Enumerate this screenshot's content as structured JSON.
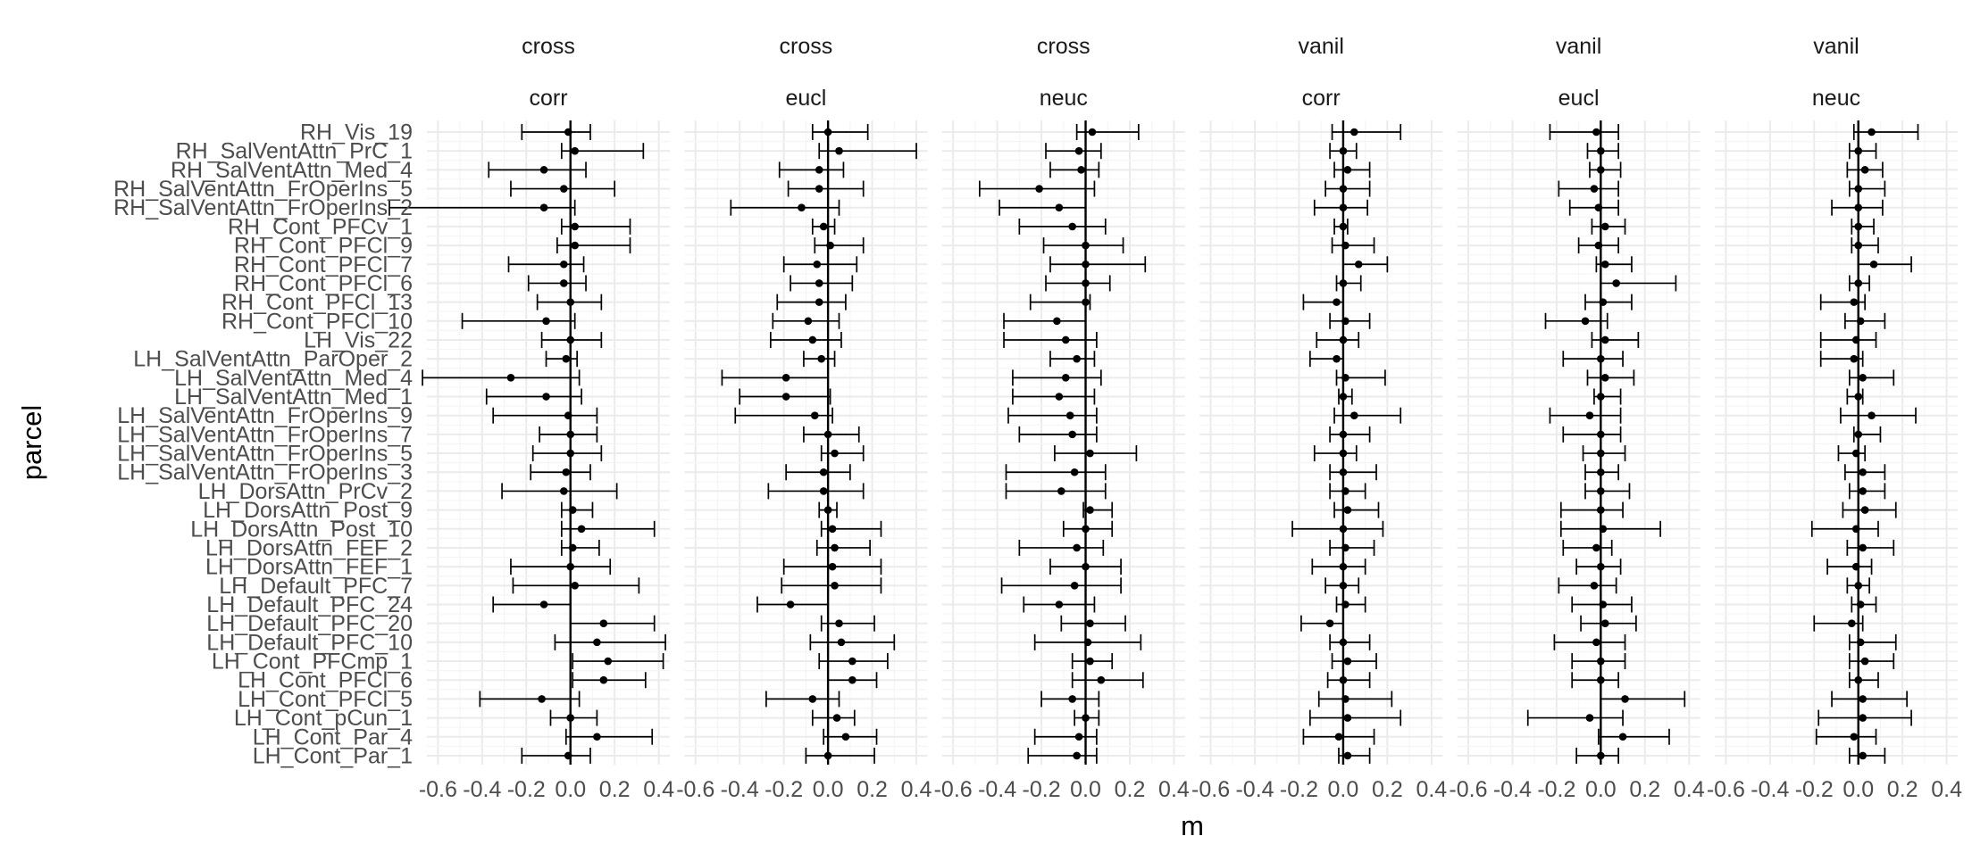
{
  "chart_data": {
    "type": "forest-plot (point + error bar)",
    "xlabel": "m",
    "ylabel": "parcel",
    "xlim": [
      -0.65,
      0.45
    ],
    "xticks": [
      -0.6,
      -0.4,
      -0.2,
      0.0,
      0.2,
      0.4
    ],
    "xtick_labels": [
      "-0.6",
      "-0.4",
      "-0.2",
      "0.0",
      "0.2",
      "0.4"
    ],
    "reference_line_x": 0,
    "grid": true,
    "parcels": [
      "RH_Vis_19",
      "RH_SalVentAttn_PrC_1",
      "RH_SalVentAttn_Med_4",
      "RH_SalVentAttn_FrOperIns_5",
      "RH_SalVentAttn_FrOperIns_2",
      "RH_Cont_PFCv_1",
      "RH_Cont_PFCl_9",
      "RH_Cont_PFCl_7",
      "RH_Cont_PFCl_6",
      "RH_Cont_PFCl_13",
      "RH_Cont_PFCl_10",
      "LH_Vis_22",
      "LH_SalVentAttn_ParOper_2",
      "LH_SalVentAttn_Med_4",
      "LH_SalVentAttn_Med_1",
      "LH_SalVentAttn_FrOperIns_9",
      "LH_SalVentAttn_FrOperIns_7",
      "LH_SalVentAttn_FrOperIns_5",
      "LH_SalVentAttn_FrOperIns_3",
      "LH_DorsAttn_PrCv_2",
      "LH_DorsAttn_Post_9",
      "LH_DorsAttn_Post_10",
      "LH_DorsAttn_FEF_2",
      "LH_DorsAttn_FEF_1",
      "LH_Default_PFC_7",
      "LH_Default_PFC_24",
      "LH_Default_PFC_20",
      "LH_Default_PFC_10",
      "LH_Cont_PFCmp_1",
      "LH_Cont_PFCl_6",
      "LH_Cont_PFCl_5",
      "LH_Cont_pCun_1",
      "LH_Cont_Par_4",
      "LH_Cont_Par_1"
    ],
    "panels": [
      {
        "strip": [
          "cross",
          "corr"
        ],
        "m": [
          -0.01,
          0.02,
          -0.12,
          -0.03,
          -0.12,
          0.02,
          0.02,
          -0.03,
          -0.03,
          0.0,
          -0.11,
          0.0,
          -0.02,
          -0.27,
          -0.11,
          -0.01,
          0.0,
          0.0,
          -0.02,
          -0.03,
          0.01,
          0.05,
          0.01,
          0.0,
          0.02,
          -0.12,
          0.15,
          0.12,
          0.17,
          0.15,
          -0.13,
          0.0,
          0.12,
          -0.01
        ],
        "lo": [
          -0.22,
          -0.04,
          -0.37,
          -0.27,
          -0.82,
          -0.04,
          -0.06,
          -0.28,
          -0.19,
          -0.15,
          -0.49,
          -0.13,
          -0.11,
          -0.67,
          -0.38,
          -0.35,
          -0.14,
          -0.17,
          -0.18,
          -0.31,
          -0.04,
          -0.04,
          -0.04,
          -0.27,
          -0.26,
          -0.35,
          0.0,
          -0.07,
          0.01,
          0.01,
          -0.41,
          -0.09,
          -0.02,
          -0.22
        ],
        "hi": [
          0.09,
          0.33,
          0.07,
          0.2,
          0.02,
          0.27,
          0.27,
          0.06,
          0.07,
          0.14,
          0.02,
          0.14,
          0.03,
          0.04,
          0.05,
          0.12,
          0.12,
          0.14,
          0.09,
          0.21,
          0.1,
          0.38,
          0.13,
          0.18,
          0.31,
          0.0,
          0.38,
          0.43,
          0.42,
          0.34,
          0.04,
          0.12,
          0.37,
          0.09
        ]
      },
      {
        "strip": [
          "cross",
          "eucl"
        ],
        "m": [
          0.0,
          0.05,
          -0.04,
          -0.04,
          -0.12,
          -0.02,
          0.01,
          -0.05,
          -0.04,
          -0.04,
          -0.09,
          -0.07,
          -0.03,
          -0.19,
          -0.19,
          -0.06,
          0.0,
          0.03,
          -0.02,
          -0.02,
          0.0,
          0.02,
          0.03,
          0.02,
          0.03,
          -0.17,
          0.05,
          0.06,
          0.11,
          0.11,
          -0.07,
          0.04,
          0.08,
          0.0
        ],
        "lo": [
          -0.07,
          -0.04,
          -0.22,
          -0.18,
          -0.44,
          -0.07,
          -0.06,
          -0.2,
          -0.17,
          -0.23,
          -0.25,
          -0.26,
          -0.11,
          -0.48,
          -0.4,
          -0.42,
          -0.11,
          -0.03,
          -0.19,
          -0.27,
          -0.04,
          -0.03,
          -0.05,
          -0.2,
          -0.21,
          -0.32,
          -0.03,
          -0.08,
          -0.04,
          0.0,
          -0.28,
          -0.07,
          -0.02,
          -0.1
        ],
        "hi": [
          0.18,
          0.4,
          0.07,
          0.16,
          0.05,
          0.03,
          0.16,
          0.13,
          0.11,
          0.08,
          0.05,
          0.06,
          0.03,
          0.0,
          0.01,
          0.02,
          0.14,
          0.16,
          0.1,
          0.16,
          0.04,
          0.24,
          0.19,
          0.24,
          0.24,
          0.0,
          0.21,
          0.3,
          0.27,
          0.22,
          0.05,
          0.12,
          0.22,
          0.21
        ]
      },
      {
        "strip": [
          "cross",
          "neuc"
        ],
        "m": [
          0.03,
          -0.03,
          -0.02,
          -0.21,
          -0.12,
          -0.06,
          0.0,
          0.0,
          0.0,
          0.0,
          -0.13,
          -0.09,
          -0.04,
          -0.09,
          -0.12,
          -0.07,
          -0.06,
          0.02,
          -0.05,
          -0.11,
          0.02,
          0.0,
          -0.04,
          0.0,
          -0.05,
          -0.12,
          0.02,
          0.01,
          0.02,
          0.07,
          -0.06,
          0.0,
          -0.03,
          -0.04
        ],
        "lo": [
          -0.04,
          -0.18,
          -0.16,
          -0.48,
          -0.39,
          -0.3,
          -0.19,
          -0.16,
          -0.18,
          -0.25,
          -0.37,
          -0.37,
          -0.16,
          -0.33,
          -0.33,
          -0.35,
          -0.3,
          -0.14,
          -0.36,
          -0.36,
          -0.01,
          -0.1,
          -0.3,
          -0.16,
          -0.38,
          -0.28,
          -0.11,
          -0.23,
          -0.06,
          -0.06,
          -0.2,
          -0.05,
          -0.23,
          -0.26
        ],
        "hi": [
          0.24,
          0.07,
          0.06,
          0.04,
          0.0,
          0.09,
          0.17,
          0.27,
          0.11,
          0.02,
          0.0,
          0.05,
          0.04,
          0.07,
          0.04,
          0.05,
          0.05,
          0.23,
          0.09,
          0.09,
          0.12,
          0.12,
          0.08,
          0.16,
          0.16,
          0.04,
          0.18,
          0.25,
          0.12,
          0.26,
          0.06,
          0.06,
          0.05,
          0.05
        ]
      },
      {
        "strip": [
          "vanil",
          "corr"
        ],
        "m": [
          0.05,
          0.0,
          0.02,
          0.0,
          0.0,
          0.0,
          0.01,
          0.07,
          0.0,
          -0.03,
          0.01,
          0.0,
          -0.03,
          0.01,
          0.0,
          0.05,
          0.0,
          0.0,
          0.0,
          0.01,
          0.02,
          0.0,
          0.01,
          0.0,
          0.0,
          0.01,
          -0.06,
          0.0,
          0.02,
          0.0,
          0.01,
          0.02,
          -0.02,
          0.02
        ],
        "lo": [
          -0.05,
          -0.06,
          -0.04,
          -0.08,
          -0.13,
          -0.04,
          -0.05,
          0.0,
          -0.03,
          -0.18,
          -0.06,
          -0.12,
          -0.15,
          -0.03,
          -0.02,
          -0.04,
          -0.06,
          -0.13,
          -0.06,
          -0.06,
          -0.04,
          -0.23,
          -0.06,
          -0.14,
          -0.08,
          -0.03,
          -0.19,
          -0.06,
          -0.05,
          -0.07,
          -0.11,
          -0.15,
          -0.18,
          -0.02
        ],
        "hi": [
          0.26,
          0.06,
          0.12,
          0.12,
          0.11,
          0.02,
          0.14,
          0.2,
          0.08,
          0.0,
          0.12,
          0.07,
          0.0,
          0.19,
          0.04,
          0.26,
          0.12,
          0.06,
          0.15,
          0.1,
          0.16,
          0.18,
          0.14,
          0.1,
          0.07,
          0.1,
          0.0,
          0.12,
          0.15,
          0.12,
          0.22,
          0.26,
          0.14,
          0.12
        ]
      },
      {
        "strip": [
          "vanil",
          "eucl"
        ],
        "m": [
          -0.02,
          0.0,
          0.0,
          -0.03,
          -0.01,
          0.02,
          -0.01,
          0.02,
          0.07,
          0.01,
          -0.07,
          0.02,
          0.0,
          0.02,
          0.0,
          -0.05,
          0.0,
          0.0,
          0.0,
          0.0,
          0.0,
          0.01,
          -0.02,
          0.0,
          -0.03,
          0.01,
          0.02,
          -0.02,
          0.0,
          0.0,
          0.11,
          -0.05,
          0.1,
          0.0
        ],
        "lo": [
          -0.23,
          -0.06,
          -0.05,
          -0.19,
          -0.14,
          -0.04,
          -0.1,
          -0.02,
          0.0,
          -0.07,
          -0.25,
          -0.04,
          -0.17,
          -0.06,
          -0.03,
          -0.23,
          -0.17,
          -0.08,
          -0.07,
          -0.07,
          -0.18,
          -0.18,
          -0.17,
          -0.11,
          -0.19,
          -0.13,
          -0.09,
          -0.21,
          -0.13,
          -0.13,
          0.0,
          -0.33,
          -0.01,
          -0.11
        ],
        "hi": [
          0.08,
          0.08,
          0.09,
          0.08,
          0.08,
          0.11,
          0.08,
          0.14,
          0.34,
          0.14,
          0.03,
          0.17,
          0.1,
          0.15,
          0.09,
          0.09,
          0.09,
          0.11,
          0.08,
          0.13,
          0.1,
          0.27,
          0.05,
          0.09,
          0.07,
          0.14,
          0.16,
          0.11,
          0.11,
          0.08,
          0.38,
          0.1,
          0.31,
          0.08
        ]
      },
      {
        "strip": [
          "vanil",
          "neuc"
        ],
        "m": [
          0.06,
          0.0,
          0.03,
          0.0,
          0.0,
          0.0,
          0.0,
          0.07,
          0.0,
          -0.02,
          0.01,
          -0.01,
          -0.02,
          0.02,
          0.0,
          0.06,
          0.0,
          -0.01,
          0.02,
          0.02,
          0.03,
          -0.01,
          0.02,
          -0.01,
          0.0,
          0.01,
          -0.03,
          0.01,
          0.03,
          0.0,
          0.02,
          0.02,
          -0.02,
          0.02
        ],
        "lo": [
          -0.02,
          -0.04,
          -0.05,
          -0.04,
          -0.12,
          -0.03,
          -0.03,
          0.0,
          -0.04,
          -0.17,
          -0.06,
          -0.17,
          -0.17,
          -0.04,
          -0.05,
          -0.08,
          -0.02,
          -0.09,
          -0.06,
          -0.04,
          -0.07,
          -0.21,
          -0.05,
          -0.14,
          -0.05,
          -0.03,
          -0.2,
          -0.04,
          -0.04,
          -0.04,
          -0.12,
          -0.18,
          -0.19,
          -0.04
        ],
        "hi": [
          0.27,
          0.08,
          0.11,
          0.12,
          0.11,
          0.07,
          0.09,
          0.24,
          0.05,
          0.03,
          0.12,
          0.08,
          0.02,
          0.16,
          0.02,
          0.26,
          0.1,
          0.03,
          0.12,
          0.12,
          0.17,
          0.09,
          0.16,
          0.06,
          0.05,
          0.08,
          0.02,
          0.17,
          0.16,
          0.09,
          0.22,
          0.24,
          0.08,
          0.12
        ]
      }
    ]
  }
}
